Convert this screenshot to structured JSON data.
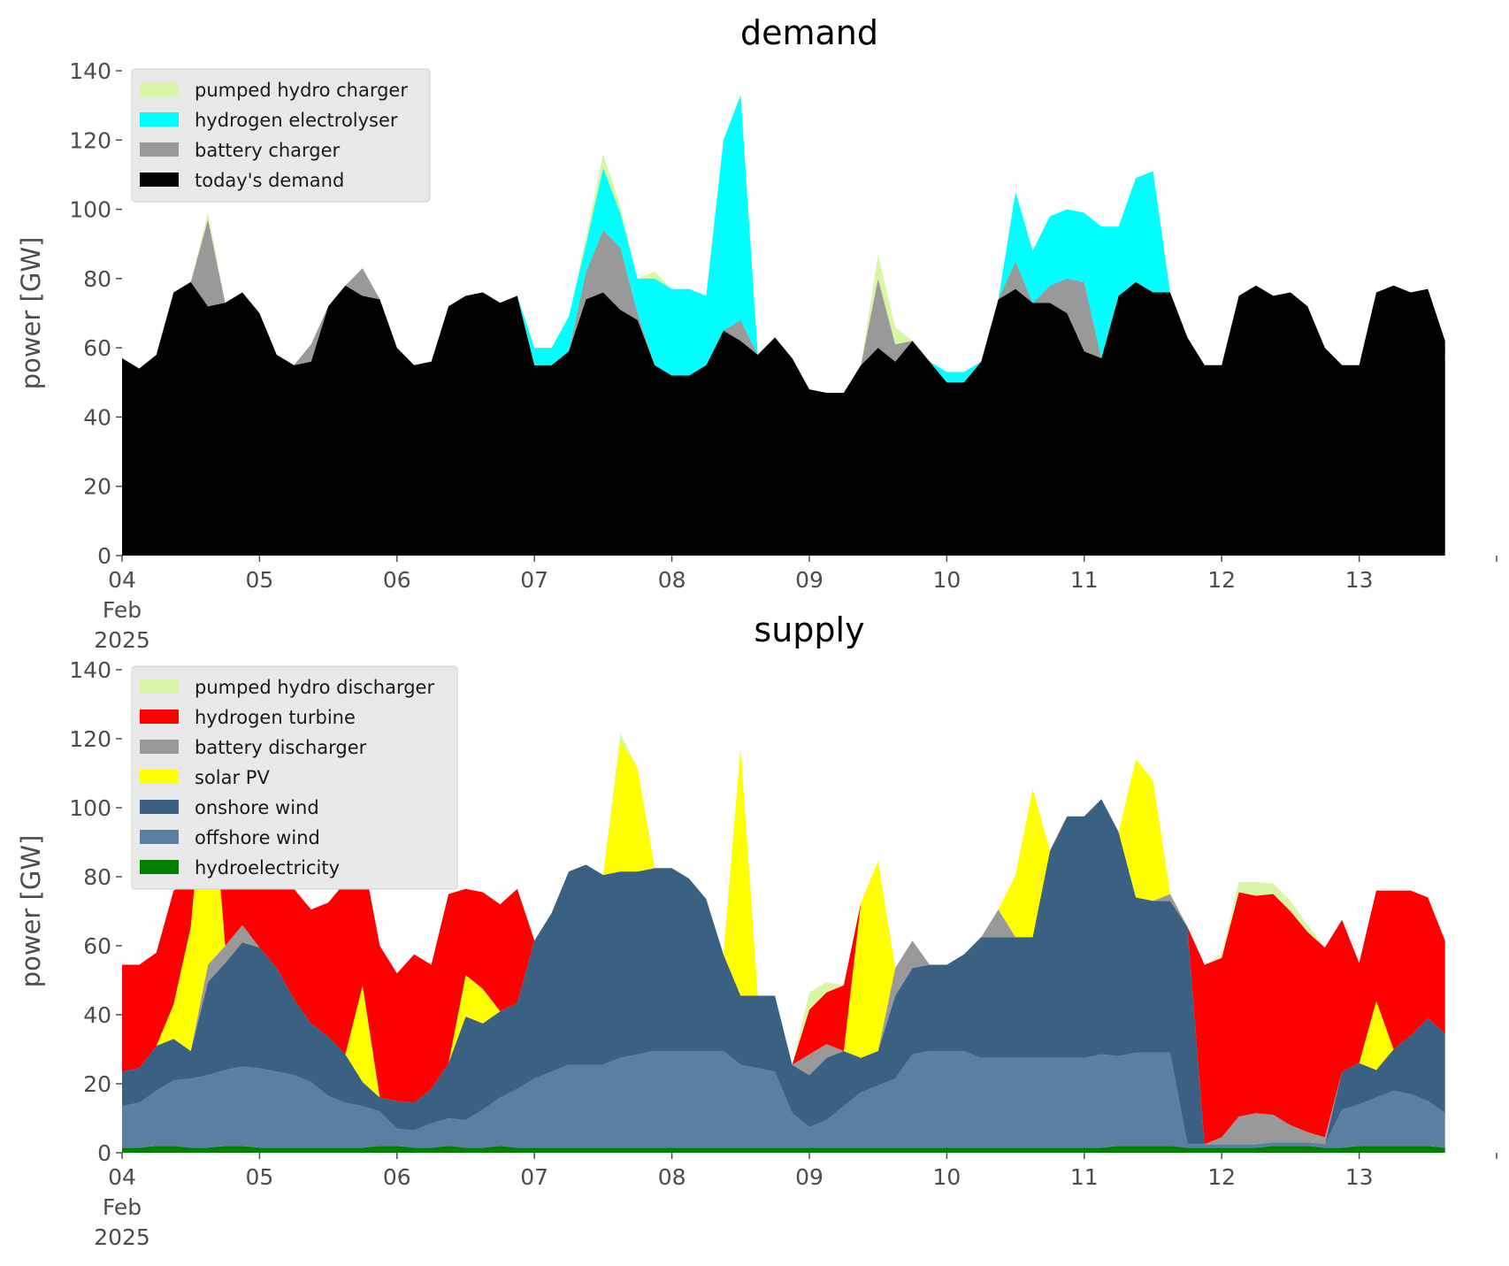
{
  "chart_data": [
    {
      "type": "area",
      "stacked": true,
      "title": "demand",
      "ylabel": "power [GW]",
      "ylim": [
        0,
        140
      ],
      "yticks": [
        "0",
        "20",
        "40",
        "60",
        "80",
        "100",
        "120",
        "140"
      ],
      "x_start": "2025-02-04",
      "x_step_hours": 3,
      "xticks": [
        {
          "label": "04",
          "sub": [
            "Feb",
            "2025"
          ],
          "day": 0
        },
        {
          "label": "05",
          "day": 1
        },
        {
          "label": "06",
          "day": 2
        },
        {
          "label": "07",
          "day": 3
        },
        {
          "label": "08",
          "day": 4
        },
        {
          "label": "09",
          "day": 5
        },
        {
          "label": "10",
          "day": 6
        },
        {
          "label": "11",
          "day": 7
        },
        {
          "label": "12",
          "day": 8
        },
        {
          "label": "13",
          "day": 9
        }
      ],
      "grid": false,
      "legend": "top-left",
      "legend_order": [
        "pumped hydro charger",
        "hydrogen electrolyser",
        "battery charger",
        "today's demand"
      ],
      "series": [
        {
          "name": "today's demand",
          "color": "#000000",
          "values": [
            57,
            54,
            58,
            76,
            79,
            72,
            73,
            76,
            70,
            58,
            55,
            56,
            72,
            78,
            75,
            74,
            60,
            55,
            56,
            72,
            75,
            76,
            73,
            75,
            55,
            55,
            59,
            74,
            76,
            71,
            68,
            55,
            52,
            52,
            55,
            65,
            62,
            58,
            63,
            57,
            48,
            47,
            47,
            55,
            60,
            56,
            62,
            56,
            50,
            50,
            56,
            74,
            77,
            73,
            73,
            70,
            59,
            57,
            75,
            79,
            76,
            76,
            63,
            55,
            55,
            75,
            78,
            75,
            76,
            72,
            60,
            55,
            55,
            76,
            78,
            76,
            77,
            62
          ]
        },
        {
          "name": "battery charger",
          "color": "#999999",
          "values": [
            0,
            0,
            0,
            0,
            0,
            25,
            0,
            0,
            0,
            0,
            0,
            5,
            0,
            0,
            8,
            0,
            0,
            0,
            0,
            0,
            0,
            0,
            0,
            0,
            0,
            0,
            0,
            8,
            18,
            18,
            2,
            0,
            0,
            0,
            0,
            0,
            6,
            0,
            0,
            0,
            0,
            0,
            0,
            0,
            20,
            5,
            0,
            0,
            0,
            0,
            0,
            0,
            8,
            0,
            5,
            10,
            20,
            0,
            0,
            0,
            0,
            0,
            0,
            0,
            0,
            0,
            0,
            0,
            0,
            0,
            0,
            0,
            0,
            0,
            0,
            0,
            0,
            0
          ]
        },
        {
          "name": "hydrogen electrolyser",
          "color": "#00ffff",
          "values": [
            0,
            0,
            0,
            0,
            0,
            0,
            0,
            0,
            0,
            0,
            0,
            0,
            0,
            0,
            0,
            0,
            0,
            0,
            0,
            0,
            0,
            0,
            0,
            0,
            5,
            5,
            10,
            8,
            18,
            10,
            10,
            25,
            25,
            25,
            20,
            55,
            65,
            0,
            0,
            0,
            0,
            0,
            0,
            0,
            0,
            0,
            0,
            0,
            3,
            3,
            0,
            0,
            20,
            15,
            20,
            20,
            20,
            38,
            20,
            30,
            35,
            0,
            0,
            0,
            0,
            0,
            0,
            0,
            0,
            0,
            0,
            0,
            0,
            0,
            0,
            0,
            0,
            0
          ]
        },
        {
          "name": "pumped hydro charger",
          "color": "#d9f5a6",
          "values": [
            0,
            0,
            0,
            0,
            0,
            2,
            0,
            0,
            0,
            0,
            0,
            0,
            0,
            0,
            0,
            0,
            0,
            0,
            0,
            0,
            0,
            0,
            0,
            0,
            0,
            0,
            0,
            2,
            4,
            2,
            0,
            2,
            0,
            0,
            0,
            0,
            0,
            0,
            0,
            0,
            0,
            0,
            0,
            0,
            7,
            5,
            0,
            0,
            0,
            0,
            0,
            0,
            0,
            0,
            0,
            0,
            0,
            0,
            0,
            0,
            0,
            0,
            0,
            0,
            0,
            0,
            0,
            0,
            0,
            0,
            0,
            0,
            0,
            0,
            0,
            0,
            0,
            0
          ]
        }
      ]
    },
    {
      "type": "area",
      "stacked": true,
      "title": "supply",
      "ylabel": "power [GW]",
      "ylim": [
        0,
        140
      ],
      "yticks": [
        "0",
        "20",
        "40",
        "60",
        "80",
        "100",
        "120",
        "140"
      ],
      "x_start": "2025-02-04",
      "x_step_hours": 3,
      "xticks": [
        {
          "label": "04",
          "sub": [
            "Feb",
            "2025"
          ],
          "day": 0
        },
        {
          "label": "05",
          "day": 1
        },
        {
          "label": "06",
          "day": 2
        },
        {
          "label": "07",
          "day": 3
        },
        {
          "label": "08",
          "day": 4
        },
        {
          "label": "09",
          "day": 5
        },
        {
          "label": "10",
          "day": 6
        },
        {
          "label": "11",
          "day": 7
        },
        {
          "label": "12",
          "day": 8
        },
        {
          "label": "13",
          "day": 9
        }
      ],
      "grid": false,
      "legend": "top-left",
      "legend_order": [
        "pumped hydro discharger",
        "hydrogen turbine",
        "battery discharger",
        "solar PV",
        "onshore wind",
        "offshore wind",
        "hydroelectricity"
      ],
      "series": [
        {
          "name": "hydroelectricity",
          "color": "#008000",
          "values": [
            1.5,
            1.5,
            2,
            2,
            1.5,
            1.5,
            2,
            2,
            1.5,
            1.5,
            1.5,
            1.5,
            1.5,
            1.5,
            1.5,
            2,
            2,
            1.5,
            1.5,
            2,
            1.5,
            1.5,
            2,
            1.5,
            1.5,
            1.5,
            1.5,
            1.5,
            1.5,
            1.5,
            1.5,
            1.5,
            1.5,
            1.5,
            1.5,
            1.5,
            1.5,
            1.5,
            1.5,
            1.5,
            1.5,
            1.5,
            1.5,
            1.5,
            1.5,
            1.5,
            1.5,
            1.5,
            1.5,
            1.5,
            1.5,
            1.5,
            1.5,
            1.5,
            1.5,
            1.5,
            1.5,
            1.5,
            2,
            2,
            2,
            2,
            1.5,
            1.5,
            1.5,
            1.5,
            1.5,
            2,
            2,
            2,
            1.5,
            1.5,
            2,
            2,
            2,
            2,
            2,
            1.5
          ]
        },
        {
          "name": "offshore wind",
          "color": "#5b7fa3",
          "values": [
            12,
            13,
            16,
            19,
            20,
            21,
            22,
            23,
            23,
            22,
            21,
            19,
            15,
            13,
            12,
            10,
            5,
            5,
            7,
            8,
            8,
            11,
            14,
            17,
            20,
            22,
            24,
            24,
            24,
            26,
            27,
            28,
            28,
            28,
            28,
            28,
            24,
            23,
            22,
            10,
            6,
            8,
            12,
            16,
            18,
            20,
            27,
            28,
            28,
            28,
            26,
            26,
            26,
            26,
            26,
            26,
            26,
            27,
            26,
            27,
            27,
            27,
            1,
            1,
            1,
            1,
            1,
            1,
            1,
            1,
            1,
            11,
            12,
            14,
            16,
            15,
            13,
            10
          ]
        },
        {
          "name": "onshore wind",
          "color": "#3b6182",
          "values": [
            10,
            10,
            13,
            12,
            8,
            27,
            31,
            36,
            35,
            30,
            22,
            17,
            17,
            14,
            7,
            4,
            8,
            8,
            10,
            16,
            30,
            25,
            25,
            25,
            40,
            46,
            56,
            58,
            55,
            54,
            53,
            53,
            53,
            50,
            44,
            28,
            20,
            21,
            22,
            14,
            15,
            18,
            16,
            10,
            10,
            24,
            25,
            25,
            25,
            28,
            35,
            35,
            35,
            35,
            60,
            70,
            70,
            74,
            65,
            45,
            44,
            44,
            63,
            0,
            0,
            0,
            0,
            0,
            0,
            0,
            0,
            11,
            12,
            8,
            12,
            17,
            24,
            23
          ]
        },
        {
          "name": "battery discharger",
          "color": "#999999",
          "values": [
            0,
            0,
            0,
            0,
            0,
            5,
            5,
            5,
            0,
            0,
            0,
            0,
            0,
            0,
            0,
            0,
            0,
            0,
            0,
            0,
            0,
            0,
            0,
            0,
            0,
            0,
            0,
            0,
            0,
            0,
            0,
            0,
            0,
            0,
            0,
            0,
            0,
            0,
            0,
            0,
            6,
            4,
            0,
            0,
            0,
            8,
            8,
            0,
            0,
            0,
            0,
            8,
            0,
            0,
            0,
            0,
            0,
            0,
            0,
            0,
            0,
            2,
            0,
            0,
            2,
            8,
            9,
            8,
            5,
            3,
            2,
            0,
            0,
            0,
            0,
            0,
            0,
            0
          ]
        },
        {
          "name": "solar PV",
          "color": "#ffff00",
          "values": [
            0,
            0,
            0,
            10,
            36,
            67,
            0,
            0,
            0,
            0,
            0,
            0,
            0,
            0,
            28,
            0,
            0,
            0,
            0,
            0,
            12,
            10,
            0,
            0,
            0,
            0,
            0,
            0,
            0,
            38,
            30,
            0,
            0,
            0,
            0,
            0,
            72,
            0,
            0,
            0,
            0,
            0,
            0,
            45,
            55,
            0,
            0,
            0,
            0,
            0,
            0,
            0,
            18,
            43,
            0,
            0,
            0,
            0,
            0,
            40,
            35,
            0,
            0,
            0,
            0,
            0,
            0,
            0,
            0,
            0,
            0,
            0,
            0,
            20,
            0,
            0,
            0,
            0
          ]
        },
        {
          "name": "hydrogen turbine",
          "color": "#ff0000",
          "values": [
            31,
            30,
            27,
            33,
            13,
            0,
            16,
            32,
            34,
            25,
            32,
            33,
            39,
            50,
            38,
            44,
            37,
            43,
            36,
            49,
            25,
            28,
            31,
            33,
            0,
            0,
            0,
            0,
            0,
            0,
            0,
            0,
            0,
            0,
            0,
            0,
            0,
            0,
            0,
            0,
            13,
            15,
            19,
            0,
            0,
            0,
            0,
            0,
            0,
            0,
            0,
            0,
            0,
            0,
            0,
            0,
            0,
            0,
            0,
            0,
            0,
            0,
            0,
            52,
            52,
            65,
            63,
            64,
            62,
            58,
            55,
            44,
            29,
            32,
            46,
            42,
            35,
            27
          ]
        },
        {
          "name": "pumped hydro discharger",
          "color": "#d9f5a6",
          "values": [
            0,
            0,
            0,
            0,
            0,
            2,
            0,
            0,
            0,
            0,
            0,
            0,
            0,
            0,
            0,
            0,
            0,
            0,
            0,
            0,
            0,
            0,
            0,
            0,
            0,
            0,
            0,
            0,
            0,
            2,
            0,
            0,
            0,
            0,
            0,
            0,
            0,
            0,
            0,
            0,
            5,
            3,
            0,
            0,
            0,
            0,
            0,
            0,
            0,
            0,
            0,
            0,
            0,
            0,
            0,
            0,
            0,
            0,
            0,
            0,
            0,
            0,
            0,
            0,
            1,
            3,
            4,
            3,
            3,
            2,
            0,
            0,
            0,
            0,
            0,
            0,
            0,
            0
          ]
        }
      ]
    }
  ]
}
